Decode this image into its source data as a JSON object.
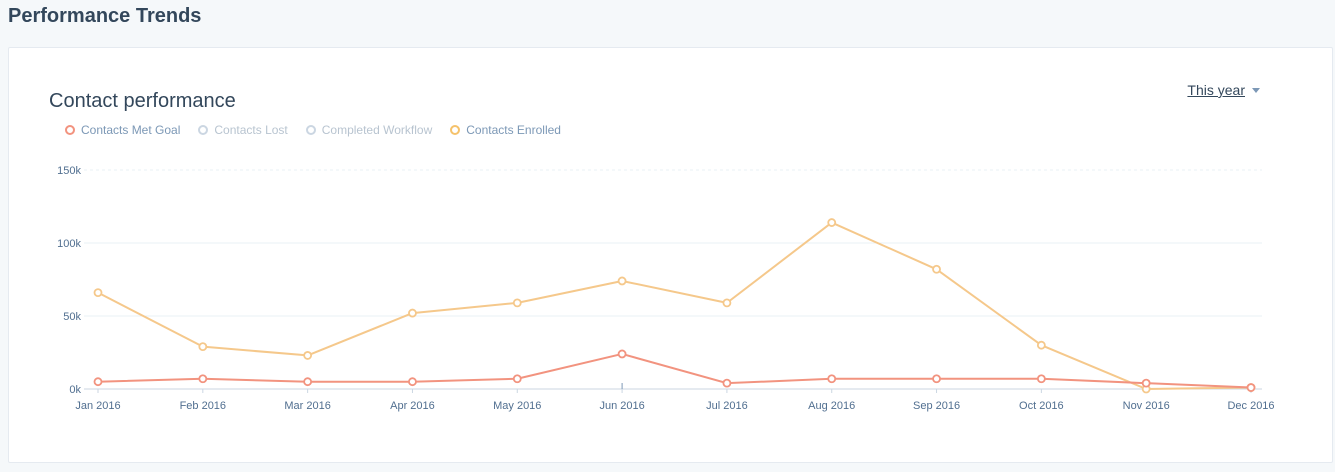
{
  "page": {
    "title": "Performance Trends"
  },
  "card": {
    "title": "Contact performance",
    "range_label": "This year"
  },
  "legend": [
    {
      "name": "Contacts Met Goal",
      "color": "#f2937f",
      "active": true
    },
    {
      "name": "Contacts Lost",
      "color": "#cbd6e2",
      "active": false
    },
    {
      "name": "Completed Workflow",
      "color": "#cbd6e2",
      "active": false
    },
    {
      "name": "Contacts Enrolled",
      "color": "#f5c26b",
      "active": true
    }
  ],
  "chart_data": {
    "type": "line",
    "title": "Contact performance",
    "xlabel": "",
    "ylabel": "",
    "categories": [
      "Jan 2016",
      "Feb 2016",
      "Mar 2016",
      "Apr 2016",
      "May 2016",
      "Jun 2016",
      "Jul 2016",
      "Aug 2016",
      "Sep 2016",
      "Oct 2016",
      "Nov 2016",
      "Dec 2016"
    ],
    "ylim": [
      0,
      150000
    ],
    "yticks": [
      0,
      50000,
      100000,
      150000
    ],
    "ytick_labels": [
      "0k",
      "50k",
      "100k",
      "150k"
    ],
    "grid": true,
    "series": [
      {
        "name": "Contacts Enrolled",
        "color": "#f5c88b",
        "values": [
          66000,
          29000,
          23000,
          52000,
          59000,
          74000,
          59000,
          114000,
          82000,
          30000,
          0,
          1000
        ]
      },
      {
        "name": "Contacts Met Goal",
        "color": "#f2937f",
        "values": [
          5000,
          7000,
          5000,
          5000,
          7000,
          24000,
          4000,
          7000,
          7000,
          7000,
          4000,
          1000
        ]
      }
    ]
  }
}
